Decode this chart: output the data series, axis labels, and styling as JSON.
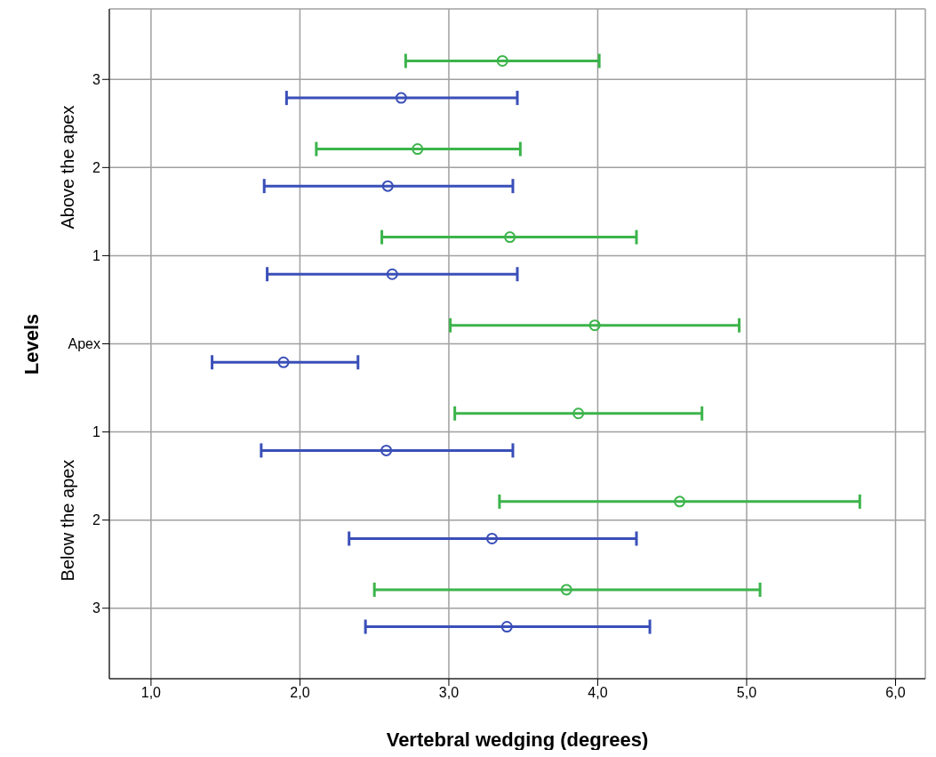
{
  "chart_data": {
    "type": "scatter",
    "xlabel": "Vertebral wedging (degrees)",
    "ylabel": "Levels",
    "categories": [
      "3",
      "2",
      "1",
      "Apex",
      "1",
      "2",
      "3"
    ],
    "annotations": [
      "Above the apex",
      "Below the apex"
    ],
    "series": [
      {
        "color": "#3cb44b",
        "values": [
          3.36,
          2.79,
          3.41,
          3.98,
          3.87,
          4.55,
          3.79
        ],
        "errors": [
          [
            2.71,
            4.01
          ],
          [
            2.11,
            3.48
          ],
          [
            2.55,
            4.26
          ],
          [
            3.01,
            4.95
          ],
          [
            3.04,
            4.7
          ],
          [
            3.34,
            5.76
          ],
          [
            2.5,
            5.09
          ]
        ]
      },
      {
        "color": "#3a4fb8",
        "values": [
          2.68,
          2.59,
          2.62,
          1.89,
          2.58,
          3.29,
          3.39
        ],
        "errors": [
          [
            1.91,
            3.46
          ],
          [
            1.76,
            3.43
          ],
          [
            1.78,
            3.46
          ],
          [
            1.41,
            2.39
          ],
          [
            1.74,
            3.43
          ],
          [
            2.33,
            4.26
          ],
          [
            2.44,
            4.35
          ]
        ]
      }
    ],
    "orientation": "horizontal",
    "xlim": [
      0.72,
      6.2
    ],
    "xticks": [
      {
        "value": 1,
        "label": "1,0"
      },
      {
        "value": 2,
        "label": "2,0"
      },
      {
        "value": 3,
        "label": "3,0"
      },
      {
        "value": 4,
        "label": "4,0"
      },
      {
        "value": 5,
        "label": "5,0"
      },
      {
        "value": 6,
        "label": "6,0"
      }
    ],
    "grid": true,
    "legend": false,
    "marker": "circle"
  }
}
